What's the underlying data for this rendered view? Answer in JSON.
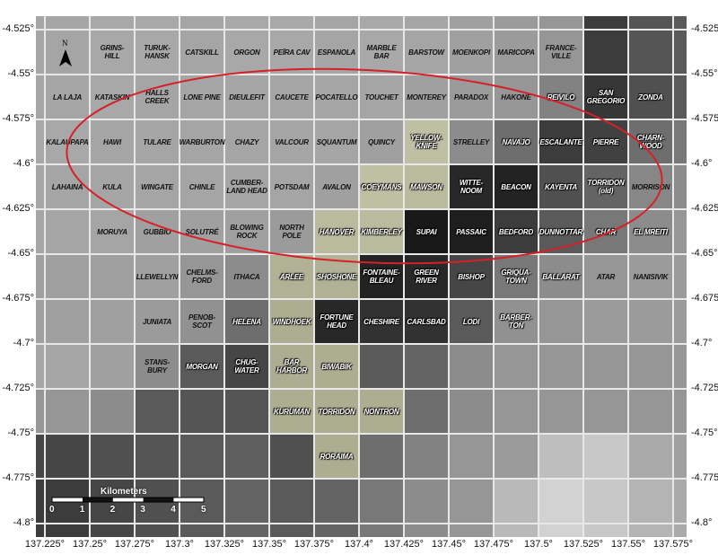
{
  "map": {
    "ellipse_color": "#d62028",
    "highlight_color": "#d8d8a8",
    "north_label": "N",
    "x_ticks": [
      "137.225°",
      "137.25°",
      "137.275°",
      "137.3°",
      "137.325°",
      "137.35°",
      "137.375°",
      "137.4°",
      "137.425°",
      "137.45°",
      "137.475°",
      "137.5°",
      "137.525°",
      "137.55°",
      "137.575°"
    ],
    "y_ticks": [
      "-4.525°",
      "-4.55°",
      "-4.575°",
      "-4.6°",
      "-4.625°",
      "-4.65°",
      "-4.675°",
      "-4.7°",
      "-4.725°",
      "-4.75°",
      "-4.775°",
      "-4.8°"
    ],
    "scale_bar": {
      "title": "Kilometers",
      "labels": [
        "0",
        "1",
        "2",
        "3",
        "4",
        "5"
      ]
    },
    "labels": [
      {
        "lon_w": 137.25,
        "lat_n": -4.525,
        "text": "GRINS-\nHILL"
      },
      {
        "lon_w": 137.275,
        "lat_n": -4.525,
        "text": "TURUK-\nHANSK"
      },
      {
        "lon_w": 137.3,
        "lat_n": -4.525,
        "text": "CATSKILL"
      },
      {
        "lon_w": 137.325,
        "lat_n": -4.525,
        "text": "ORGON"
      },
      {
        "lon_w": 137.35,
        "lat_n": -4.525,
        "text": "PEÏRA CAV"
      },
      {
        "lon_w": 137.375,
        "lat_n": -4.525,
        "text": "ESPANOLA"
      },
      {
        "lon_w": 137.4,
        "lat_n": -4.525,
        "text": "MARBLE\nBAR"
      },
      {
        "lon_w": 137.425,
        "lat_n": -4.525,
        "text": "BARSTOW"
      },
      {
        "lon_w": 137.45,
        "lat_n": -4.525,
        "text": "MOENKOPI"
      },
      {
        "lon_w": 137.475,
        "lat_n": -4.525,
        "text": "MARICOPA"
      },
      {
        "lon_w": 137.5,
        "lat_n": -4.525,
        "text": "FRANCE-\nVILLE"
      },
      {
        "lon_w": 137.225,
        "lat_n": -4.55,
        "text": "LA LAJA"
      },
      {
        "lon_w": 137.25,
        "lat_n": -4.55,
        "text": "KATASKIN"
      },
      {
        "lon_w": 137.275,
        "lat_n": -4.55,
        "text": "HALLS\nCREEK"
      },
      {
        "lon_w": 137.3,
        "lat_n": -4.55,
        "text": "LONE PINE"
      },
      {
        "lon_w": 137.325,
        "lat_n": -4.55,
        "text": "DIEULEFIT"
      },
      {
        "lon_w": 137.35,
        "lat_n": -4.55,
        "text": "CAUCETE"
      },
      {
        "lon_w": 137.375,
        "lat_n": -4.55,
        "text": "POCATELLO"
      },
      {
        "lon_w": 137.4,
        "lat_n": -4.55,
        "text": "TOUCHET"
      },
      {
        "lon_w": 137.425,
        "lat_n": -4.55,
        "text": "MONTEREY"
      },
      {
        "lon_w": 137.45,
        "lat_n": -4.55,
        "text": "PARADOX"
      },
      {
        "lon_w": 137.475,
        "lat_n": -4.55,
        "text": "HAKONE"
      },
      {
        "lon_w": 137.5,
        "lat_n": -4.55,
        "text": "REIVILO",
        "white": true
      },
      {
        "lon_w": 137.525,
        "lat_n": -4.55,
        "text": "SAN\nGREGORIO",
        "white": true
      },
      {
        "lon_w": 137.55,
        "lat_n": -4.55,
        "text": "ZONDA",
        "white": true
      },
      {
        "lon_w": 137.225,
        "lat_n": -4.575,
        "text": "KALAUPAPA"
      },
      {
        "lon_w": 137.25,
        "lat_n": -4.575,
        "text": "HAWI"
      },
      {
        "lon_w": 137.275,
        "lat_n": -4.575,
        "text": "TULARE"
      },
      {
        "lon_w": 137.3,
        "lat_n": -4.575,
        "text": "WARBURTON"
      },
      {
        "lon_w": 137.325,
        "lat_n": -4.575,
        "text": "CHAZY"
      },
      {
        "lon_w": 137.35,
        "lat_n": -4.575,
        "text": "VALCOUR"
      },
      {
        "lon_w": 137.375,
        "lat_n": -4.575,
        "text": "SQUANTUM"
      },
      {
        "lon_w": 137.4,
        "lat_n": -4.575,
        "text": "QUINCY"
      },
      {
        "lon_w": 137.425,
        "lat_n": -4.575,
        "text": "YELLOW-\nKNIFE",
        "white": true
      },
      {
        "lon_w": 137.45,
        "lat_n": -4.575,
        "text": "STRELLEY"
      },
      {
        "lon_w": 137.475,
        "lat_n": -4.575,
        "text": "NAVAJO",
        "white": true
      },
      {
        "lon_w": 137.5,
        "lat_n": -4.575,
        "text": "ESCALANTE",
        "white": true
      },
      {
        "lon_w": 137.525,
        "lat_n": -4.575,
        "text": "PIERRE",
        "white": true
      },
      {
        "lon_w": 137.55,
        "lat_n": -4.575,
        "text": "CHARN-\nWOOD",
        "white": true
      },
      {
        "lon_w": 137.225,
        "lat_n": -4.6,
        "text": "LAHAINA"
      },
      {
        "lon_w": 137.25,
        "lat_n": -4.6,
        "text": "KULA"
      },
      {
        "lon_w": 137.275,
        "lat_n": -4.6,
        "text": "WINGATE"
      },
      {
        "lon_w": 137.3,
        "lat_n": -4.6,
        "text": "CHINLE"
      },
      {
        "lon_w": 137.325,
        "lat_n": -4.6,
        "text": "CUMBER-\nLAND HEAD"
      },
      {
        "lon_w": 137.35,
        "lat_n": -4.6,
        "text": "POTSDAM"
      },
      {
        "lon_w": 137.375,
        "lat_n": -4.6,
        "text": "AVALON"
      },
      {
        "lon_w": 137.4,
        "lat_n": -4.6,
        "text": "COEYMANS",
        "white": true
      },
      {
        "lon_w": 137.425,
        "lat_n": -4.6,
        "text": "MAWSON",
        "white": true
      },
      {
        "lon_w": 137.45,
        "lat_n": -4.6,
        "text": "WITTE-\nNOOM",
        "white": true
      },
      {
        "lon_w": 137.475,
        "lat_n": -4.6,
        "text": "BEACON",
        "white": true
      },
      {
        "lon_w": 137.5,
        "lat_n": -4.6,
        "text": "KAYENTA",
        "white": true
      },
      {
        "lon_w": 137.525,
        "lat_n": -4.6,
        "text": "TORRIDON\n(old)",
        "white": true
      },
      {
        "lon_w": 137.55,
        "lat_n": -4.6,
        "text": "MORRISON"
      },
      {
        "lon_w": 137.25,
        "lat_n": -4.625,
        "text": "MORUYA"
      },
      {
        "lon_w": 137.275,
        "lat_n": -4.625,
        "text": "GUBBIO"
      },
      {
        "lon_w": 137.3,
        "lat_n": -4.625,
        "text": "SOLUTRÉ"
      },
      {
        "lon_w": 137.325,
        "lat_n": -4.625,
        "text": "BLOWING\nROCK"
      },
      {
        "lon_w": 137.35,
        "lat_n": -4.625,
        "text": "NORTH\nPOLE"
      },
      {
        "lon_w": 137.375,
        "lat_n": -4.625,
        "text": "HANOVER",
        "white": true
      },
      {
        "lon_w": 137.4,
        "lat_n": -4.625,
        "text": "KIMBERLEY",
        "white": true
      },
      {
        "lon_w": 137.425,
        "lat_n": -4.625,
        "text": "SUPAI",
        "white": true
      },
      {
        "lon_w": 137.45,
        "lat_n": -4.625,
        "text": "PASSAIC",
        "white": true
      },
      {
        "lon_w": 137.475,
        "lat_n": -4.625,
        "text": "BEDFORD",
        "white": true
      },
      {
        "lon_w": 137.5,
        "lat_n": -4.625,
        "text": "DUNNOTTAR",
        "white": true
      },
      {
        "lon_w": 137.525,
        "lat_n": -4.625,
        "text": "CHAR",
        "white": true
      },
      {
        "lon_w": 137.55,
        "lat_n": -4.625,
        "text": "EL MREITI",
        "white": true
      },
      {
        "lon_w": 137.275,
        "lat_n": -4.65,
        "text": "LLEWELLYN"
      },
      {
        "lon_w": 137.3,
        "lat_n": -4.65,
        "text": "CHELMS-\nFORD"
      },
      {
        "lon_w": 137.325,
        "lat_n": -4.65,
        "text": "ITHACA"
      },
      {
        "lon_w": 137.35,
        "lat_n": -4.65,
        "text": "ARLEE",
        "white": true
      },
      {
        "lon_w": 137.375,
        "lat_n": -4.65,
        "text": "SHOSHONE",
        "white": true
      },
      {
        "lon_w": 137.4,
        "lat_n": -4.65,
        "text": "FONTAINE-\nBLEAU",
        "white": true
      },
      {
        "lon_w": 137.425,
        "lat_n": -4.65,
        "text": "GREEN\nRIVER",
        "white": true
      },
      {
        "lon_w": 137.45,
        "lat_n": -4.65,
        "text": "BISHOP",
        "white": true
      },
      {
        "lon_w": 137.475,
        "lat_n": -4.65,
        "text": "GRIQUA-\nTOWN",
        "white": true
      },
      {
        "lon_w": 137.5,
        "lat_n": -4.65,
        "text": "BALLARAT",
        "white": true
      },
      {
        "lon_w": 137.525,
        "lat_n": -4.65,
        "text": "ATAR"
      },
      {
        "lon_w": 137.55,
        "lat_n": -4.65,
        "text": "NANISIVIK"
      },
      {
        "lon_w": 137.275,
        "lat_n": -4.675,
        "text": "JUNIATA"
      },
      {
        "lon_w": 137.3,
        "lat_n": -4.675,
        "text": "PENOB-\nSCOT"
      },
      {
        "lon_w": 137.325,
        "lat_n": -4.675,
        "text": "HELENA",
        "white": true
      },
      {
        "lon_w": 137.35,
        "lat_n": -4.675,
        "text": "WINDHOEK",
        "white": true
      },
      {
        "lon_w": 137.375,
        "lat_n": -4.675,
        "text": "FORTUNE\nHEAD",
        "white": true
      },
      {
        "lon_w": 137.4,
        "lat_n": -4.675,
        "text": "CHESHIRE",
        "white": true
      },
      {
        "lon_w": 137.425,
        "lat_n": -4.675,
        "text": "CARLSBAD",
        "white": true
      },
      {
        "lon_w": 137.45,
        "lat_n": -4.675,
        "text": "LODI",
        "white": true
      },
      {
        "lon_w": 137.475,
        "lat_n": -4.675,
        "text": "BARBER-\nTON",
        "white": true
      },
      {
        "lon_w": 137.275,
        "lat_n": -4.7,
        "text": "STANS-\nBURY"
      },
      {
        "lon_w": 137.3,
        "lat_n": -4.7,
        "text": "MORGAN",
        "white": true
      },
      {
        "lon_w": 137.325,
        "lat_n": -4.7,
        "text": "CHUG-\nWATER",
        "white": true
      },
      {
        "lon_w": 137.35,
        "lat_n": -4.7,
        "text": "BAR\nHARBOR",
        "white": true
      },
      {
        "lon_w": 137.375,
        "lat_n": -4.7,
        "text": "BIWABIK",
        "white": true
      },
      {
        "lon_w": 137.35,
        "lat_n": -4.725,
        "text": "KURUMAN",
        "white": true
      },
      {
        "lon_w": 137.375,
        "lat_n": -4.725,
        "text": "TORRIDON",
        "white": true
      },
      {
        "lon_w": 137.4,
        "lat_n": -4.725,
        "text": "NONTRON",
        "white": true
      },
      {
        "lon_w": 137.375,
        "lat_n": -4.75,
        "text": "RORAIMA",
        "white": true
      }
    ],
    "highlighted_cells": [
      {
        "lon_w": 137.425,
        "lat_n": -4.575
      },
      {
        "lon_w": 137.4,
        "lat_n": -4.6
      },
      {
        "lon_w": 137.425,
        "lat_n": -4.6
      },
      {
        "lon_w": 137.375,
        "lat_n": -4.625
      },
      {
        "lon_w": 137.4,
        "lat_n": -4.625
      },
      {
        "lon_w": 137.35,
        "lat_n": -4.65
      },
      {
        "lon_w": 137.375,
        "lat_n": -4.65
      },
      {
        "lon_w": 137.35,
        "lat_n": -4.675
      },
      {
        "lon_w": 137.35,
        "lat_n": -4.7
      },
      {
        "lon_w": 137.375,
        "lat_n": -4.7
      },
      {
        "lon_w": 137.35,
        "lat_n": -4.725
      },
      {
        "lon_w": 137.375,
        "lat_n": -4.725
      },
      {
        "lon_w": 137.4,
        "lat_n": -4.725
      },
      {
        "lon_w": 137.375,
        "lat_n": -4.75
      }
    ]
  }
}
